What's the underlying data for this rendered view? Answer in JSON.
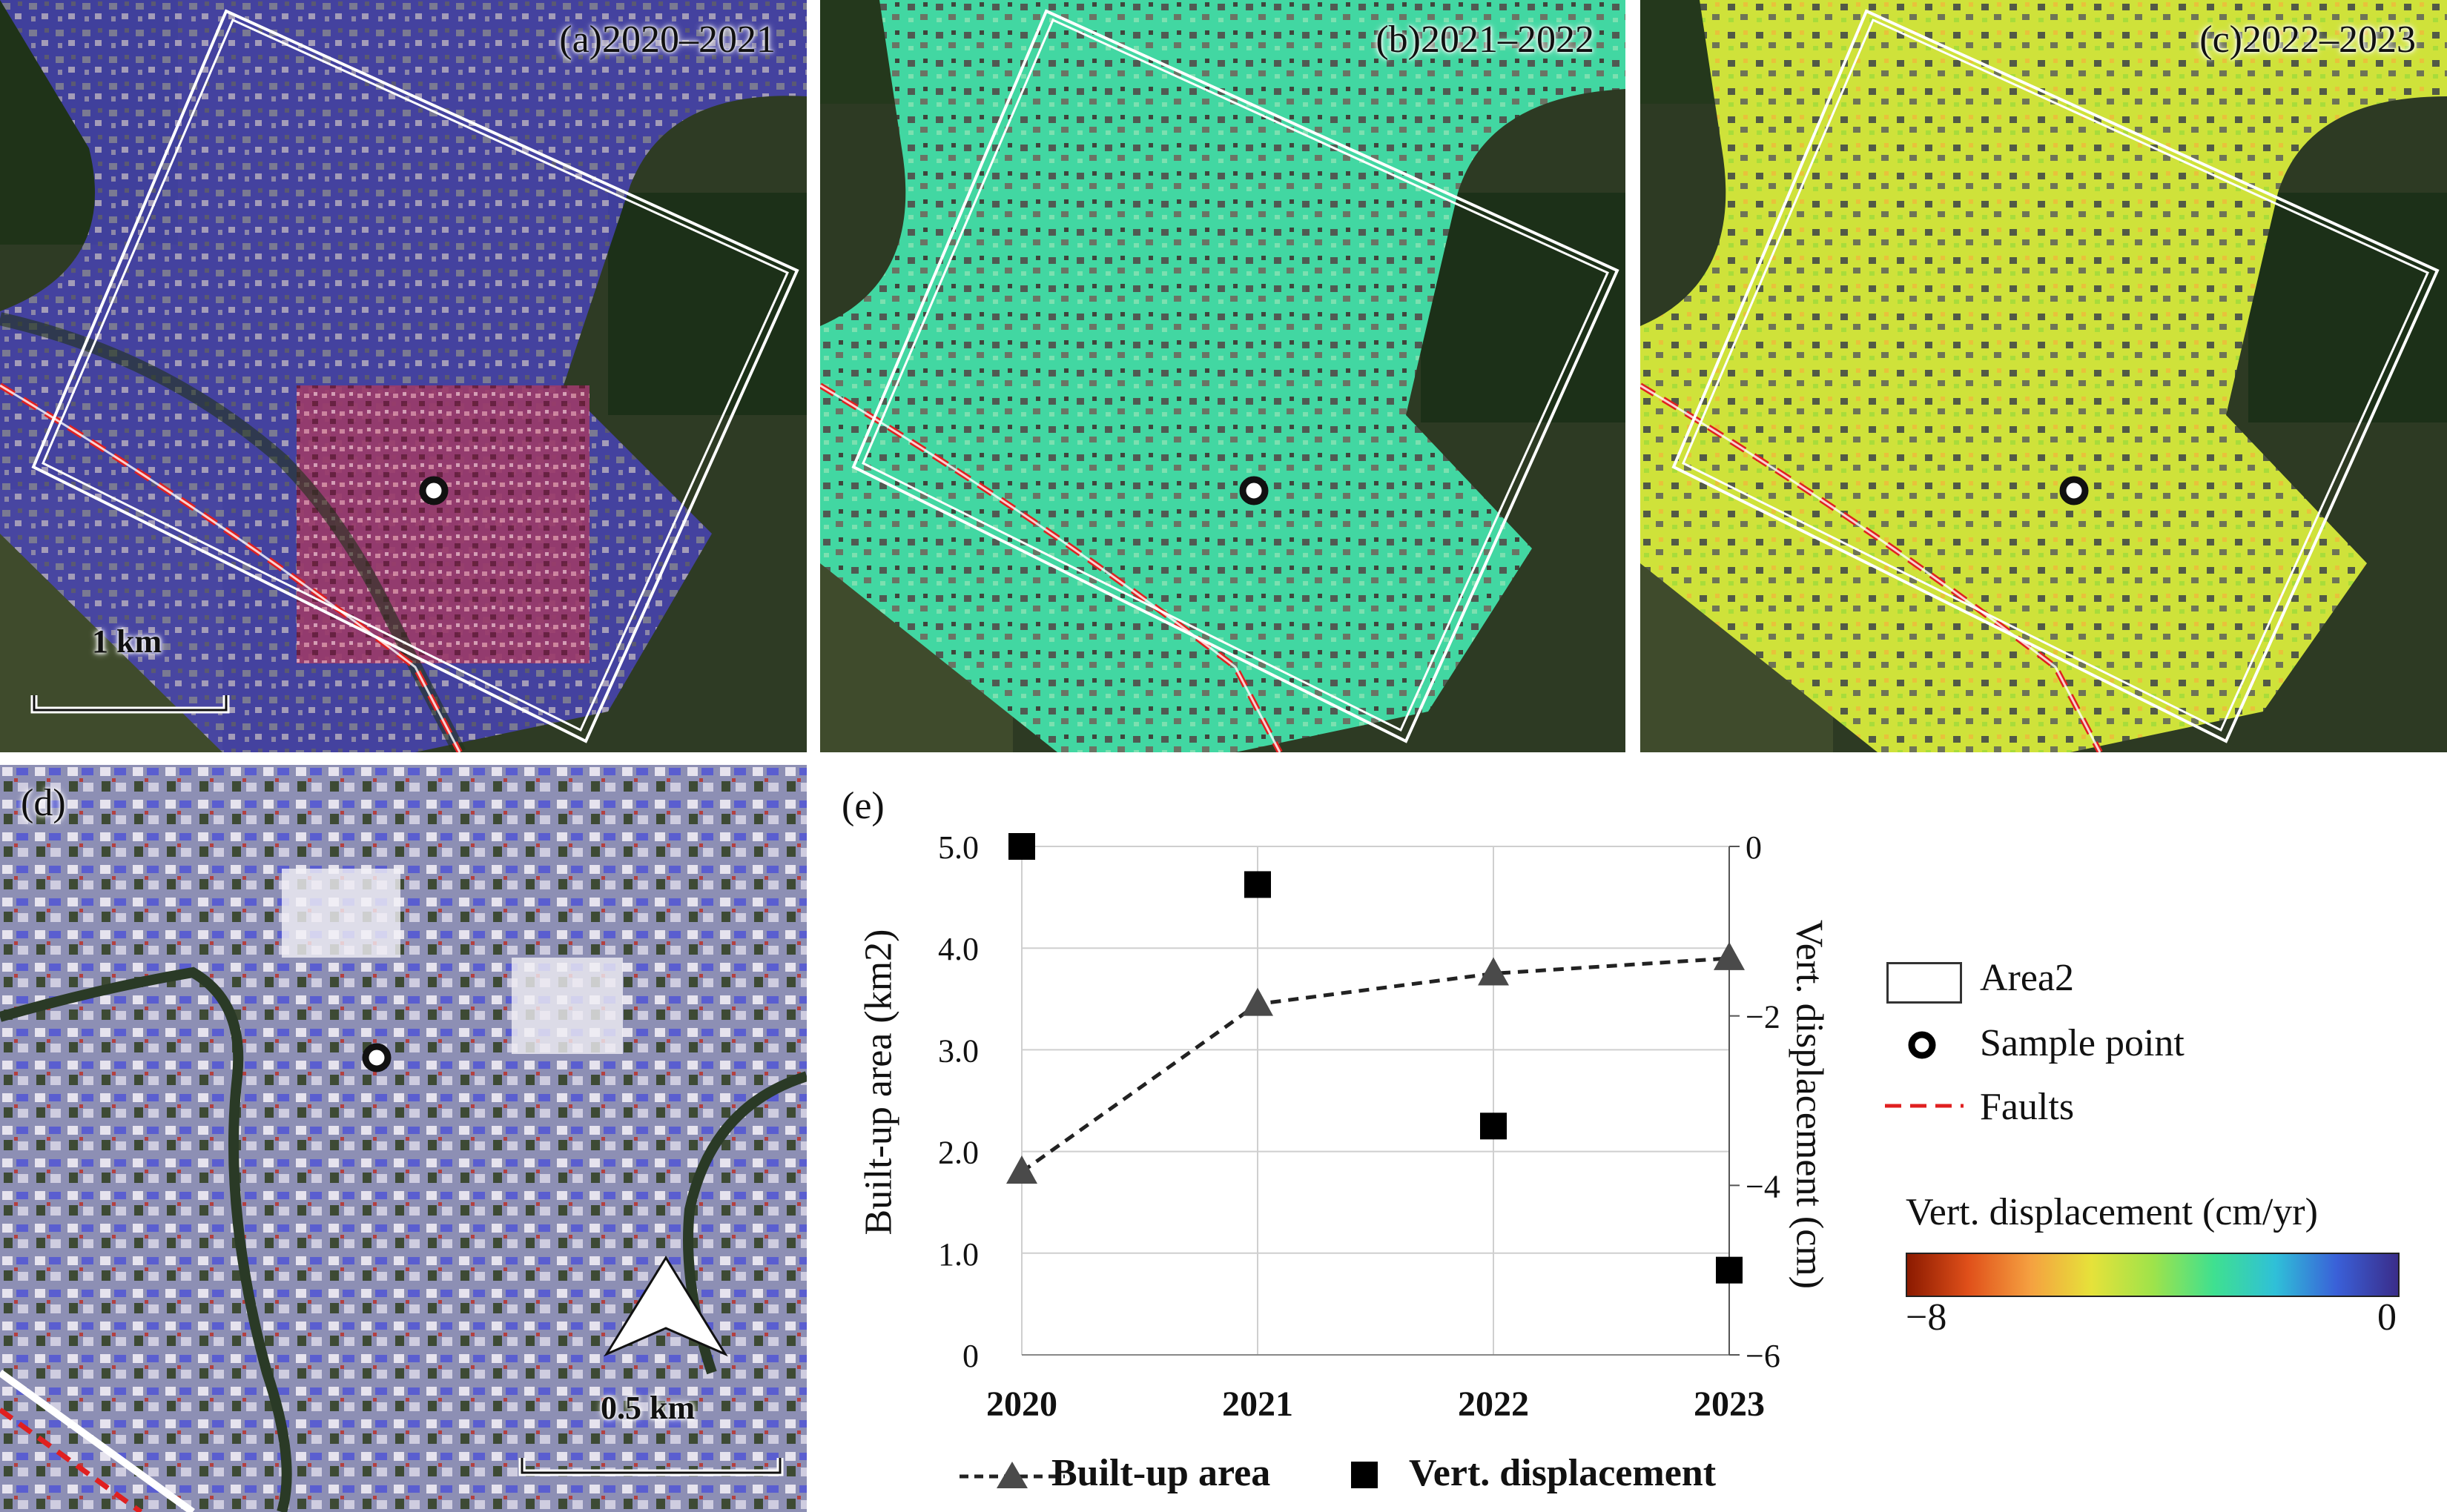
{
  "panels": {
    "a": {
      "label": "(a)2020–2021"
    },
    "b": {
      "label": "(b)2021–2022"
    },
    "c": {
      "label": "(c)2022–2023"
    },
    "d": {
      "label": "(d)"
    },
    "e": {
      "label": "(e)"
    }
  },
  "scalebars": {
    "main": "1 km",
    "detail": "0.5 km"
  },
  "legend": {
    "area_label": "Area2",
    "sample_label": "Sample point",
    "faults_label": "Faults",
    "colorbar_title": "Vert.  displacement (cm/yr)",
    "colorbar_min": "−8",
    "colorbar_max": "0"
  },
  "colors": {
    "fault": "#e02020",
    "area_outline": "#ffffff",
    "colorbar": [
      "#8b1a00",
      "#e0501a",
      "#f5a040",
      "#e6e23a",
      "#9fe34a",
      "#3fe090",
      "#2fc0d8",
      "#3a60d8",
      "#3a2d8a"
    ]
  },
  "chart_data": {
    "type": "line",
    "categories": [
      "2020",
      "2021",
      "2022",
      "2023"
    ],
    "y_left": {
      "label": "Built-up area (km2)",
      "ticks": [
        "0",
        "1.0",
        "2.0",
        "3.0",
        "4.0",
        "5.0"
      ],
      "range": [
        0,
        5
      ]
    },
    "y_right": {
      "label": "Vert.  displacement (cm)",
      "ticks": [
        "0",
        "−2",
        "−4",
        "−6"
      ],
      "range": [
        -6,
        0
      ]
    },
    "grid": true,
    "series": [
      {
        "name": "Built-up area",
        "style": "dashed-line-triangle",
        "axis": "left",
        "values": [
          1.8,
          3.45,
          3.75,
          3.9
        ]
      },
      {
        "name": "Vert.  displacement",
        "style": "square-marker",
        "axis": "right",
        "values": [
          0.0,
          -0.45,
          -3.3,
          -5.0
        ]
      }
    ]
  }
}
